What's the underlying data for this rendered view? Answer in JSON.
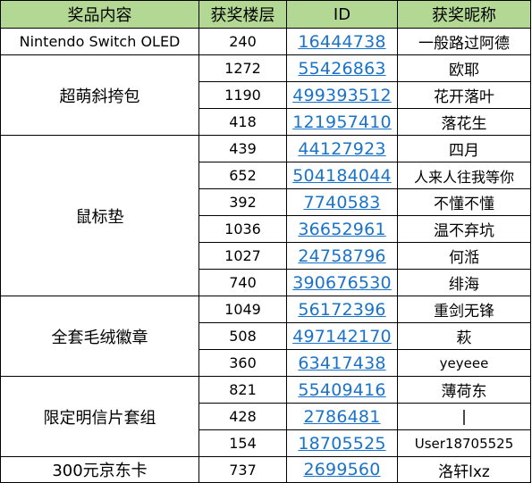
{
  "headers": {
    "prize": "奖品内容",
    "floor": "获奖楼层",
    "id": "ID",
    "nickname": "获奖昵称"
  },
  "colors": {
    "header_bg": "#b3d894",
    "link": "#1a73c9",
    "border": "#000000"
  },
  "groups": [
    {
      "prize": "Nintendo Switch OLED",
      "rows": [
        {
          "floor": "240",
          "id": "16444738",
          "nickname": "一般路过阿德"
        }
      ]
    },
    {
      "prize": "超萌斜挎包",
      "rows": [
        {
          "floor": "1272",
          "id": "55426863",
          "nickname": "欧耶"
        },
        {
          "floor": "1190",
          "id": "499393512",
          "nickname": "花开落叶"
        },
        {
          "floor": "418",
          "id": "121957410",
          "nickname": "落花生"
        }
      ]
    },
    {
      "prize": "鼠标垫",
      "rows": [
        {
          "floor": "439",
          "id": "44127923",
          "nickname": "四月"
        },
        {
          "floor": "652",
          "id": "504184044",
          "nickname": "人来人往我等你"
        },
        {
          "floor": "392",
          "id": "7740583",
          "nickname": "不懂不懂"
        },
        {
          "floor": "1036",
          "id": "36652961",
          "nickname": "温不弃坑"
        },
        {
          "floor": "1027",
          "id": "24758796",
          "nickname": "何湉"
        },
        {
          "floor": "740",
          "id": "390676530",
          "nickname": "绯海"
        }
      ]
    },
    {
      "prize": "全套毛绒徽章",
      "rows": [
        {
          "floor": "1049",
          "id": "56172396",
          "nickname": "重剑无锋"
        },
        {
          "floor": "508",
          "id": "497142170",
          "nickname": "萩"
        },
        {
          "floor": "360",
          "id": "63417438",
          "nickname": "yeyeee"
        }
      ]
    },
    {
      "prize": "限定明信片套组",
      "rows": [
        {
          "floor": "821",
          "id": "55409416",
          "nickname": "薄荷东"
        },
        {
          "floor": "428",
          "id": "2786481",
          "nickname": "|"
        },
        {
          "floor": "154",
          "id": "18705525",
          "nickname": "User18705525"
        }
      ]
    },
    {
      "prize": "300元京东卡",
      "rows": [
        {
          "floor": "737",
          "id": "2699560",
          "nickname": "洛轩lxz"
        }
      ]
    }
  ]
}
